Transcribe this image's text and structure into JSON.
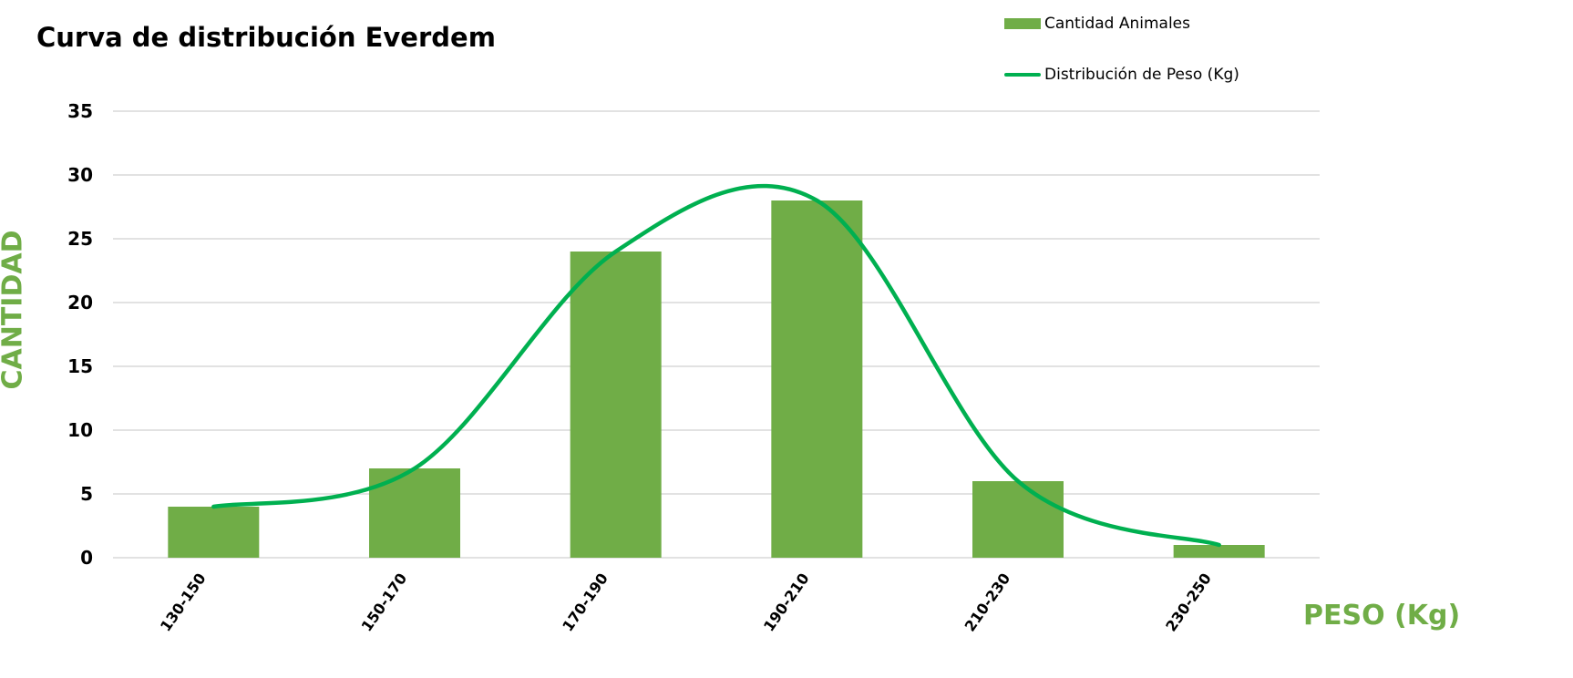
{
  "chart_data": {
    "type": "bar",
    "title": "Curva de distribución Everdem",
    "xlabel": "PESO (Kg)",
    "ylabel": "CANTIDAD",
    "categories": [
      "130-150",
      "150-170",
      "170-190",
      "190-210",
      "210-230",
      "230-250"
    ],
    "ylim": [
      0,
      35
    ],
    "yticks": [
      "0",
      "5",
      "10",
      "15",
      "20",
      "25",
      "30",
      "35"
    ],
    "grid": true,
    "legend_position": "top-right",
    "series": [
      {
        "name": "Cantidad Animales",
        "type": "bar",
        "values": [
          4,
          7,
          24,
          28,
          6,
          1
        ],
        "color": "#70ad47"
      },
      {
        "name": "Distribución de Peso (Kg)",
        "type": "line",
        "smooth": true,
        "values": [
          4,
          7,
          24,
          28,
          6,
          1
        ],
        "color": "#00b050"
      }
    ]
  }
}
